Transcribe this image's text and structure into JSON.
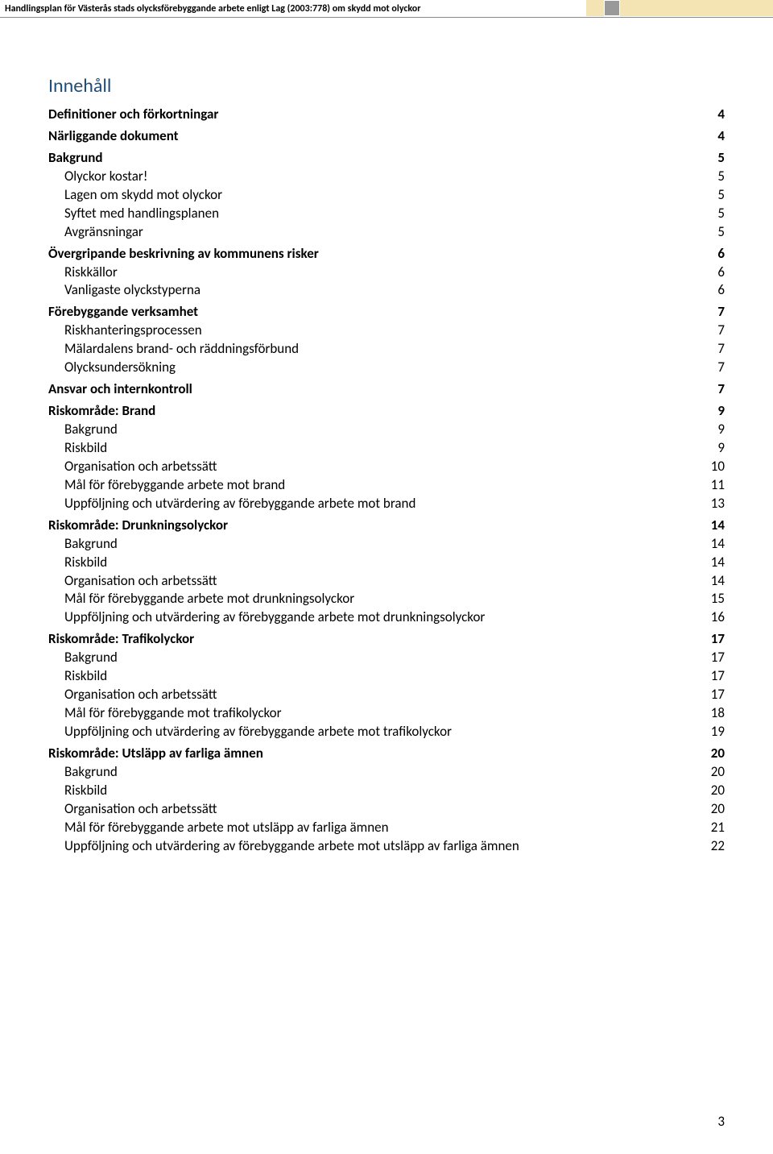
{
  "header": {
    "text": "Handlingsplan för Västerås stads olycksförebyggande arbete enligt Lag (2003:778) om skydd mot olyckor"
  },
  "colors": {
    "title": "#1f4e79",
    "header_block_beige": "#f5e4b3",
    "header_block_gray": "#999999",
    "background": "#ffffff",
    "text": "#000000"
  },
  "title": "Innehåll",
  "toc": [
    {
      "label": "Definitioner och förkortningar",
      "page": "4",
      "style": "bold",
      "section": true
    },
    {
      "label": "Närliggande dokument",
      "page": "4",
      "style": "bold",
      "section": true
    },
    {
      "label": "Bakgrund",
      "page": "5",
      "style": "bold",
      "section": true
    },
    {
      "label": "Olyckor kostar!",
      "page": "5",
      "style": "indent"
    },
    {
      "label": "Lagen om skydd mot olyckor",
      "page": "5",
      "style": "indent"
    },
    {
      "label": "Syftet med handlingsplanen",
      "page": "5",
      "style": "indent"
    },
    {
      "label": "Avgränsningar",
      "page": "5",
      "style": "indent"
    },
    {
      "label": "Övergripande beskrivning av kommunens risker",
      "page": "6",
      "style": "bold",
      "section": true
    },
    {
      "label": "Riskkällor",
      "page": "6",
      "style": "indent"
    },
    {
      "label": "Vanligaste olyckstyperna",
      "page": "6",
      "style": "indent"
    },
    {
      "label": "Förebyggande verksamhet",
      "page": "7",
      "style": "bold",
      "section": true
    },
    {
      "label": "Riskhanteringsprocessen",
      "page": "7",
      "style": "indent"
    },
    {
      "label": "Mälardalens brand- och räddningsförbund",
      "page": "7",
      "style": "indent"
    },
    {
      "label": "Olycksundersökning",
      "page": "7",
      "style": "indent"
    },
    {
      "label": "Ansvar och internkontroll",
      "page": "7",
      "style": "bold",
      "section": true
    },
    {
      "label": "Riskområde: Brand",
      "page": "9",
      "style": "bold",
      "section": true
    },
    {
      "label": "Bakgrund",
      "page": "9",
      "style": "indent"
    },
    {
      "label": "Riskbild",
      "page": "9",
      "style": "indent"
    },
    {
      "label": "Organisation och arbetssätt",
      "page": "10",
      "style": "indent"
    },
    {
      "label": "Mål för förebyggande arbete mot brand",
      "page": "11",
      "style": "indent"
    },
    {
      "label": "Uppföljning och utvärdering av förebyggande arbete mot brand",
      "page": "13",
      "style": "indent"
    },
    {
      "label": "Riskområde: Drunkningsolyckor",
      "page": "14",
      "style": "bold",
      "section": true
    },
    {
      "label": "Bakgrund",
      "page": "14",
      "style": "indent"
    },
    {
      "label": "Riskbild",
      "page": "14",
      "style": "indent"
    },
    {
      "label": "Organisation och arbetssätt",
      "page": "14",
      "style": "indent"
    },
    {
      "label": "Mål för förebyggande arbete mot drunkningsolyckor",
      "page": "15",
      "style": "indent"
    },
    {
      "label": "Uppföljning och utvärdering av förebyggande arbete mot drunkningsolyckor",
      "page": "16",
      "style": "indent"
    },
    {
      "label": "Riskområde: Trafikolyckor",
      "page": "17",
      "style": "bold",
      "section": true
    },
    {
      "label": "Bakgrund",
      "page": "17",
      "style": "indent"
    },
    {
      "label": "Riskbild",
      "page": "17",
      "style": "indent"
    },
    {
      "label": "Organisation och arbetssätt",
      "page": "17",
      "style": "indent"
    },
    {
      "label": "Mål för förebyggande mot trafikolyckor",
      "page": "18",
      "style": "indent"
    },
    {
      "label": "Uppföljning och utvärdering av förebyggande arbete mot trafikolyckor",
      "page": "19",
      "style": "indent"
    },
    {
      "label": "Riskområde: Utsläpp av farliga ämnen",
      "page": "20",
      "style": "bold",
      "section": true
    },
    {
      "label": "Bakgrund",
      "page": "20",
      "style": "indent"
    },
    {
      "label": "Riskbild",
      "page": "20",
      "style": "indent"
    },
    {
      "label": "Organisation och arbetssätt",
      "page": "20",
      "style": "indent"
    },
    {
      "label": "Mål för förebyggande arbete mot utsläpp av farliga ämnen",
      "page": "21",
      "style": "indent"
    },
    {
      "label": "Uppföljning och utvärdering av förebyggande arbete mot utsläpp av farliga ämnen",
      "page": "22",
      "style": "indent"
    }
  ],
  "pageNumber": "3"
}
